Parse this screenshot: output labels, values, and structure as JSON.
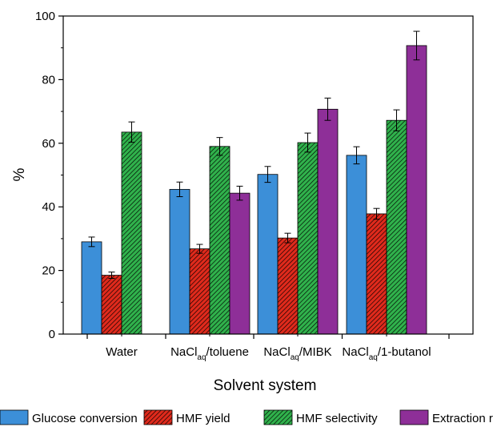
{
  "chart_data": {
    "type": "bar",
    "title": "",
    "xlabel": "Solvent system",
    "ylabel": "%",
    "ylim": [
      0,
      100
    ],
    "yticks": [
      0,
      20,
      40,
      60,
      80,
      100
    ],
    "grid": false,
    "legend_position": "bottom",
    "categories": [
      {
        "base": "Water",
        "sub": "",
        "rest": ""
      },
      {
        "base": "NaCl",
        "sub": "aq",
        "rest": "/toluene"
      },
      {
        "base": "NaCl",
        "sub": "aq",
        "rest": "/MIBK"
      },
      {
        "base": "NaCl",
        "sub": "aq",
        "rest": "/1-butanol"
      }
    ],
    "series": [
      {
        "name": "Glucose conversion",
        "color": "#3c8fd8",
        "pattern": "none",
        "values": [
          29.0,
          45.5,
          50.2,
          56.2
        ],
        "errors": [
          1.5,
          2.3,
          2.5,
          2.7
        ]
      },
      {
        "name": "HMF yield",
        "color": "#e02a1c",
        "pattern": "hatch",
        "values": [
          18.5,
          26.8,
          30.2,
          37.8
        ],
        "errors": [
          1.0,
          1.4,
          1.5,
          1.7
        ]
      },
      {
        "name": "HMF selectivity",
        "color": "#30b24c",
        "pattern": "hatch",
        "values": [
          63.5,
          59.0,
          60.2,
          67.2
        ],
        "errors": [
          3.2,
          2.8,
          3.0,
          3.3
        ]
      },
      {
        "name": "Extraction ratio",
        "color": "#8e2f98",
        "pattern": "none",
        "values": [
          null,
          44.3,
          70.7,
          90.7
        ],
        "errors": [
          null,
          2.2,
          3.5,
          4.5
        ]
      }
    ]
  }
}
